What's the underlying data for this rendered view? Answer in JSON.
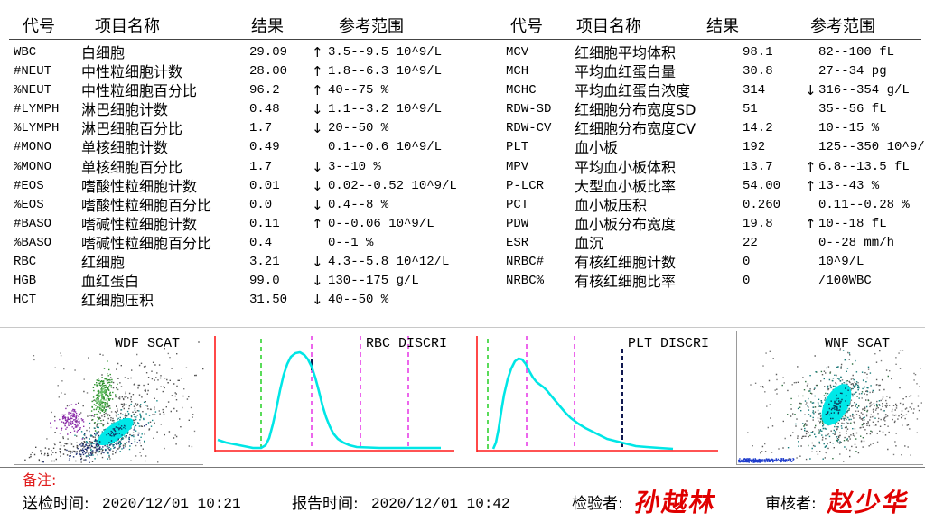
{
  "left_table": {
    "headers": {
      "code": "代号",
      "name": "项目名称",
      "result": "结果",
      "range": "参考范围"
    },
    "rows": [
      {
        "code": "WBC",
        "name": "白细胞",
        "result": "29.09",
        "flag": "↑",
        "range": "3.5--9.5 10^9/L"
      },
      {
        "code": "#NEUT",
        "name": "中性粒细胞计数",
        "result": "28.00",
        "flag": "↑",
        "range": "1.8--6.3 10^9/L"
      },
      {
        "code": "%NEUT",
        "name": "中性粒细胞百分比",
        "result": "96.2",
        "flag": "↑",
        "range": "40--75 %"
      },
      {
        "code": "#LYMPH",
        "name": "淋巴细胞计数",
        "result": "0.48",
        "flag": "↓",
        "range": "1.1--3.2 10^9/L"
      },
      {
        "code": "%LYMPH",
        "name": "淋巴细胞百分比",
        "result": "1.7",
        "flag": "↓",
        "range": "20--50 %"
      },
      {
        "code": "#MONO",
        "name": "单核细胞计数",
        "result": "0.49",
        "flag": "",
        "range": "0.1--0.6 10^9/L"
      },
      {
        "code": "%MONO",
        "name": "单核细胞百分比",
        "result": "1.7",
        "flag": "↓",
        "range": "3--10 %"
      },
      {
        "code": "#EOS",
        "name": "嗜酸性粒细胞计数",
        "result": "0.01",
        "flag": "↓",
        "range": "0.02--0.52 10^9/L"
      },
      {
        "code": "%EOS",
        "name": "嗜酸性粒细胞百分比",
        "result": "0.0",
        "flag": "↓",
        "range": "0.4--8 %"
      },
      {
        "code": "#BASO",
        "name": "嗜碱性粒细胞计数",
        "result": "0.11",
        "flag": "↑",
        "range": "0--0.06 10^9/L"
      },
      {
        "code": "%BASO",
        "name": "嗜碱性粒细胞百分比",
        "result": "0.4",
        "flag": "",
        "range": "0--1 %"
      },
      {
        "code": "RBC",
        "name": "红细胞",
        "result": "3.21",
        "flag": "↓",
        "range": "4.3--5.8 10^12/L"
      },
      {
        "code": "HGB",
        "name": "血红蛋白",
        "result": "99.0",
        "flag": "↓",
        "range": "130--175 g/L"
      },
      {
        "code": "HCT",
        "name": "红细胞压积",
        "result": "31.50",
        "flag": "↓",
        "range": "40--50 %"
      }
    ]
  },
  "right_table": {
    "headers": {
      "code": "代号",
      "name": "项目名称",
      "result": "结果",
      "range": "参考范围"
    },
    "rows": [
      {
        "code": "MCV",
        "name": "红细胞平均体积",
        "result": "98.1",
        "flag": "",
        "range": "82--100 fL"
      },
      {
        "code": "MCH",
        "name": "平均血红蛋白量",
        "result": "30.8",
        "flag": "",
        "range": "27--34 pg"
      },
      {
        "code": "MCHC",
        "name": "平均血红蛋白浓度",
        "result": "314",
        "flag": "↓",
        "range": "316--354 g/L"
      },
      {
        "code": "RDW-SD",
        "name": "红细胞分布宽度SD",
        "result": "51",
        "flag": "",
        "range": "35--56 fL"
      },
      {
        "code": "RDW-CV",
        "name": "红细胞分布宽度CV",
        "result": "14.2",
        "flag": "",
        "range": "10--15 %"
      },
      {
        "code": "PLT",
        "name": "血小板",
        "result": "192",
        "flag": "",
        "range": "125--350 10^9/"
      },
      {
        "code": "MPV",
        "name": "平均血小板体积",
        "result": "13.7",
        "flag": "↑",
        "range": "6.8--13.5 fL"
      },
      {
        "code": "P-LCR",
        "name": "大型血小板比率",
        "result": "54.00",
        "flag": "↑",
        "range": "13--43 %"
      },
      {
        "code": "PCT",
        "name": "血小板压积",
        "result": "0.260",
        "flag": "",
        "range": "0.11--0.28 %"
      },
      {
        "code": "PDW",
        "name": "血小板分布宽度",
        "result": "19.8",
        "flag": "↑",
        "range": "10--18 fL"
      },
      {
        "code": "ESR",
        "name": "血沉",
        "result": "22",
        "flag": "",
        "range": "0--28 mm/h"
      },
      {
        "code": "NRBC#",
        "name": "有核红细胞计数",
        "result": "0",
        "flag": "",
        "range": "10^9/L"
      },
      {
        "code": "NRBC%",
        "name": "有核红细胞比率",
        "result": "0",
        "flag": "",
        "range": "/100WBC"
      }
    ]
  },
  "charts": {
    "wdf": {
      "title": "WDF SCAT"
    },
    "rbc": {
      "title": "RBC DISCRI"
    },
    "plt": {
      "title": "PLT DISCRI"
    },
    "wnf": {
      "title": "WNF SCAT"
    }
  },
  "footer": {
    "remarks_label": "备注:",
    "submit_label": "送检时间:",
    "submit_time": "2020/12/01 10:21",
    "report_label": "报告时间:",
    "report_time": "2020/12/01 10:42",
    "tester_label": "检验者:",
    "tester_signature": "孙越林",
    "reviewer_label": "审核者:",
    "reviewer_signature": "赵少华"
  },
  "colors": {
    "text": "#000000",
    "remarks": "#e01a1a",
    "signature": "#e00000",
    "axis": "#ff1a1a",
    "curve": "#00e6e6",
    "lower_marker": "#00c800",
    "range_marker": "#e000e0",
    "peak_marker": "#101850",
    "cluster_fill": "#00e8e8"
  }
}
